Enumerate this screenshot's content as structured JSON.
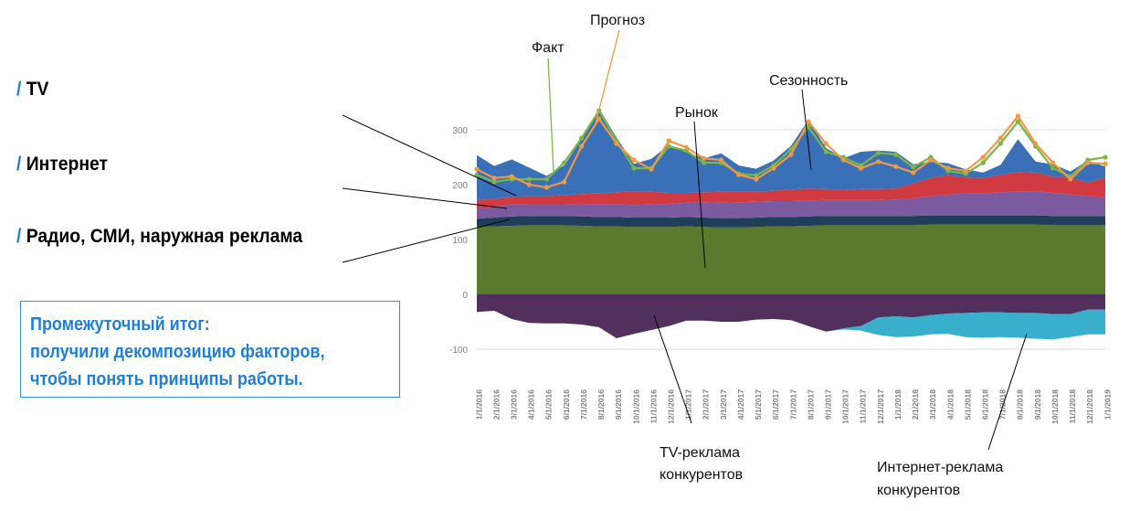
{
  "legend": [
    {
      "slash": "/",
      "label": "TV"
    },
    {
      "slash": "/",
      "label": "Интернет"
    },
    {
      "slash": "/",
      "label": "Радио, СМИ, наружная реклама"
    }
  ],
  "summary": {
    "line1": "Промежуточный итог:",
    "line2": "получили декомпозицию факторов,",
    "line3": "чтобы понять принципы работы."
  },
  "annotations": {
    "fact": "Факт",
    "forecast": "Прогноз",
    "market": "Рынок",
    "seasonality": "Сезонность",
    "tv_competitors": [
      "TV-реклама",
      "конкурентов"
    ],
    "internet_competitors": [
      "Интернет-реклама",
      "конкурентов"
    ]
  },
  "colors": {
    "base": "#5a7a2e",
    "darkband": "#1f3e5a",
    "internet": "#7b5aa0",
    "tv": "#d03a40",
    "seasonality": "#3a70b8",
    "tv_competitors": "#52305e",
    "internet_competitors": "#38b0cc",
    "fact_line": "#7ab648",
    "forecast_line": "#ee9a44",
    "gridline": "#d9d9d9",
    "accent": "#1f7fd6"
  },
  "chart_data": {
    "type": "area",
    "yticks": [
      300,
      200,
      100,
      0,
      -100
    ],
    "ylim": [
      -110,
      330
    ],
    "x": [
      "1/1/2016",
      "2/1/2016",
      "3/1/2016",
      "4/1/2016",
      "5/1/2016",
      "6/1/2016",
      "7/1/2016",
      "8/1/2016",
      "9/1/2016",
      "10/1/2016",
      "11/1/2016",
      "12/1/2016",
      "1/1/2017",
      "2/1/2017",
      "3/1/2017",
      "4/1/2017",
      "5/1/2017",
      "6/1/2017",
      "7/1/2017",
      "8/1/2017",
      "9/1/2017",
      "10/1/2017",
      "11/1/2017",
      "12/1/2017",
      "1/1/2018",
      "2/1/2018",
      "3/1/2018",
      "4/1/2018",
      "5/1/2018",
      "6/1/2018",
      "7/1/2018",
      "8/1/2018",
      "9/1/2018",
      "10/1/2018",
      "11/1/2018",
      "12/1/2018",
      "1/1/2019"
    ],
    "stacked_positive": [
      {
        "name": "Радио, СМИ, наружная реклама",
        "values": [
          123,
          124,
          125,
          126,
          126,
          126,
          125,
          124,
          124,
          123,
          123,
          123,
          124,
          123,
          122,
          122,
          123,
          124,
          124,
          125,
          126,
          126,
          126,
          126,
          126,
          126,
          127,
          127,
          127,
          127,
          127,
          127,
          127,
          126,
          126,
          126,
          126
        ]
      },
      {
        "name": "",
        "values": [
          15,
          16,
          17,
          17,
          17,
          17,
          17,
          17,
          17,
          17,
          17,
          17,
          17,
          17,
          17,
          17,
          17,
          17,
          17,
          17,
          17,
          17,
          17,
          17,
          17,
          17,
          17,
          17,
          17,
          17,
          17,
          17,
          17,
          17,
          17,
          17,
          17
        ]
      },
      {
        "name": "Интернет",
        "values": [
          18,
          20,
          22,
          22,
          22,
          22,
          22,
          23,
          23,
          23,
          24,
          25,
          26,
          28,
          28,
          29,
          29,
          29,
          29,
          29,
          29,
          29,
          29,
          29,
          30,
          32,
          35,
          38,
          40,
          40,
          42,
          44,
          44,
          42,
          39,
          36,
          35
        ]
      },
      {
        "name": "TV",
        "values": [
          16,
          14,
          14,
          14,
          14,
          16,
          19,
          20,
          22,
          25,
          23,
          20,
          18,
          18,
          20,
          19,
          18,
          19,
          21,
          22,
          20,
          18,
          20,
          20,
          20,
          27,
          33,
          35,
          29,
          28,
          32,
          35,
          34,
          30,
          30,
          25,
          35
        ]
      },
      {
        "name": "Сезонность",
        "values": [
          82,
          60,
          68,
          52,
          37,
          54,
          100,
          155,
          100,
          50,
          60,
          87,
          74,
          62,
          70,
          48,
          42,
          55,
          80,
          125,
          75,
          58,
          68,
          70,
          67,
          35,
          30,
          22,
          15,
          10,
          18,
          60,
          20,
          22,
          12,
          40,
          20
        ]
      }
    ],
    "stacked_negative": [
      {
        "name": "TV-реклама конкурентов",
        "values": [
          -32,
          -30,
          -45,
          -52,
          -53,
          -53,
          -55,
          -60,
          -80,
          -72,
          -65,
          -58,
          -48,
          -48,
          -50,
          -50,
          -46,
          -45,
          -47,
          -58,
          -68,
          -62,
          -58,
          -42,
          -40,
          -42,
          -38,
          -35,
          -34,
          -33,
          -33,
          -34,
          -34,
          -36,
          -36,
          -28,
          -28
        ]
      },
      {
        "name": "Интернет-реклама конкурентов",
        "values": [
          0,
          0,
          0,
          0,
          0,
          0,
          0,
          0,
          0,
          0,
          0,
          0,
          0,
          0,
          0,
          0,
          0,
          0,
          0,
          0,
          0,
          -2,
          -8,
          -32,
          -38,
          -35,
          -35,
          -37,
          -44,
          -46,
          -45,
          -45,
          -47,
          -46,
          -42,
          -45,
          -45
        ]
      }
    ],
    "lines": [
      {
        "name": "Факт",
        "values": [
          218,
          205,
          210,
          210,
          210,
          240,
          285,
          335,
          280,
          230,
          230,
          270,
          262,
          240,
          240,
          220,
          217,
          235,
          265,
          305,
          260,
          250,
          235,
          258,
          255,
          232,
          250,
          225,
          220,
          240,
          275,
          315,
          270,
          230,
          215,
          245,
          250
        ]
      },
      {
        "name": "Прогноз",
        "values": [
          228,
          212,
          215,
          200,
          195,
          205,
          270,
          320,
          275,
          245,
          228,
          280,
          268,
          248,
          245,
          218,
          210,
          230,
          255,
          315,
          275,
          245,
          230,
          242,
          233,
          222,
          245,
          230,
          225,
          250,
          285,
          325,
          275,
          240,
          210,
          240,
          238
        ]
      }
    ]
  }
}
